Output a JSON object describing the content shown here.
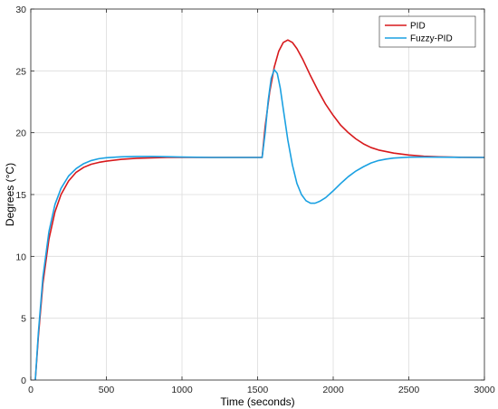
{
  "chart_data": {
    "type": "line",
    "xlabel": "Time (seconds)",
    "ylabel": "Degrees (°C)",
    "xlim": [
      0,
      3000
    ],
    "ylim": [
      0,
      30
    ],
    "xticks": [
      0,
      500,
      1000,
      1500,
      2000,
      2500,
      3000
    ],
    "yticks": [
      0,
      5,
      10,
      15,
      20,
      25,
      30
    ],
    "grid": true,
    "legend_position": "top-right",
    "series": [
      {
        "name": "PID",
        "color": "#d7191c",
        "points": [
          [
            30,
            0
          ],
          [
            50,
            3.5
          ],
          [
            80,
            7.8
          ],
          [
            120,
            11.4
          ],
          [
            160,
            13.6
          ],
          [
            200,
            15.0
          ],
          [
            250,
            16.1
          ],
          [
            300,
            16.8
          ],
          [
            350,
            17.2
          ],
          [
            400,
            17.45
          ],
          [
            450,
            17.6
          ],
          [
            500,
            17.7
          ],
          [
            600,
            17.85
          ],
          [
            700,
            17.93
          ],
          [
            800,
            17.97
          ],
          [
            900,
            18.0
          ],
          [
            1000,
            18.0
          ],
          [
            1200,
            18.0
          ],
          [
            1400,
            18.0
          ],
          [
            1530,
            18.0
          ],
          [
            1550,
            20.5
          ],
          [
            1580,
            23.3
          ],
          [
            1610,
            25.3
          ],
          [
            1640,
            26.6
          ],
          [
            1670,
            27.3
          ],
          [
            1700,
            27.5
          ],
          [
            1730,
            27.3
          ],
          [
            1760,
            26.8
          ],
          [
            1800,
            25.9
          ],
          [
            1850,
            24.6
          ],
          [
            1900,
            23.4
          ],
          [
            1950,
            22.3
          ],
          [
            2000,
            21.4
          ],
          [
            2050,
            20.6
          ],
          [
            2100,
            20.0
          ],
          [
            2150,
            19.5
          ],
          [
            2200,
            19.1
          ],
          [
            2250,
            18.8
          ],
          [
            2300,
            18.6
          ],
          [
            2400,
            18.35
          ],
          [
            2500,
            18.2
          ],
          [
            2600,
            18.1
          ],
          [
            2700,
            18.05
          ],
          [
            2800,
            18.02
          ],
          [
            3000,
            18.0
          ]
        ]
      },
      {
        "name": "Fuzzy-PID",
        "color": "#1ba1e2",
        "points": [
          [
            30,
            0
          ],
          [
            50,
            3.8
          ],
          [
            80,
            8.3
          ],
          [
            120,
            12.0
          ],
          [
            160,
            14.2
          ],
          [
            200,
            15.5
          ],
          [
            250,
            16.5
          ],
          [
            300,
            17.1
          ],
          [
            350,
            17.5
          ],
          [
            400,
            17.75
          ],
          [
            450,
            17.9
          ],
          [
            500,
            17.98
          ],
          [
            600,
            18.05
          ],
          [
            700,
            18.08
          ],
          [
            800,
            18.08
          ],
          [
            900,
            18.06
          ],
          [
            1000,
            18.03
          ],
          [
            1200,
            18.0
          ],
          [
            1400,
            18.0
          ],
          [
            1530,
            18.0
          ],
          [
            1550,
            20.0
          ],
          [
            1570,
            22.6
          ],
          [
            1590,
            24.4
          ],
          [
            1610,
            25.1
          ],
          [
            1630,
            24.8
          ],
          [
            1650,
            23.6
          ],
          [
            1670,
            21.9
          ],
          [
            1700,
            19.4
          ],
          [
            1730,
            17.4
          ],
          [
            1760,
            15.9
          ],
          [
            1790,
            15.0
          ],
          [
            1820,
            14.5
          ],
          [
            1850,
            14.3
          ],
          [
            1880,
            14.3
          ],
          [
            1910,
            14.45
          ],
          [
            1950,
            14.75
          ],
          [
            2000,
            15.3
          ],
          [
            2050,
            15.9
          ],
          [
            2100,
            16.45
          ],
          [
            2150,
            16.9
          ],
          [
            2200,
            17.25
          ],
          [
            2250,
            17.55
          ],
          [
            2300,
            17.75
          ],
          [
            2350,
            17.87
          ],
          [
            2400,
            17.95
          ],
          [
            2500,
            18.02
          ],
          [
            2600,
            18.03
          ],
          [
            2800,
            18.01
          ],
          [
            3000,
            18.0
          ]
        ]
      }
    ]
  }
}
